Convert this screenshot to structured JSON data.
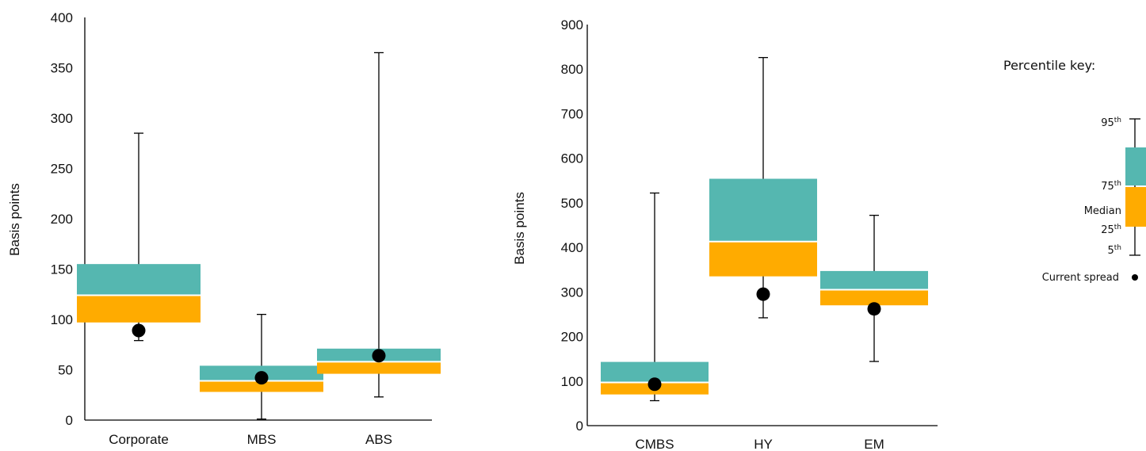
{
  "colors": {
    "upper_box": "#55b7b0",
    "lower_box": "#ffab00",
    "marker": "#000000",
    "axis": "#000000"
  },
  "chart_data": [
    {
      "type": "box",
      "ylabel": "Basis points",
      "ylim": [
        0,
        400
      ],
      "yticks": [
        "0",
        "50",
        "100",
        "150",
        "200",
        "250",
        "300",
        "350",
        "400"
      ],
      "categories": [
        "Corporate",
        "MBS",
        "ABS"
      ],
      "series": [
        {
          "category": "Corporate",
          "p5": 79,
          "p25": 97,
          "median": 124,
          "p75": 155,
          "p95": 285,
          "current": 89
        },
        {
          "category": "MBS",
          "p5": 1,
          "p25": 28,
          "median": 39,
          "p75": 54,
          "p95": 105,
          "current": 42
        },
        {
          "category": "ABS",
          "p5": 23,
          "p25": 46,
          "median": 58,
          "p75": 71,
          "p95": 365,
          "current": 64
        }
      ]
    },
    {
      "type": "box",
      "ylabel": "Basis points",
      "ylim": [
        0,
        900
      ],
      "yticks": [
        "0",
        "100",
        "200",
        "300",
        "400",
        "500",
        "600",
        "700",
        "800",
        "900"
      ],
      "categories": [
        "CMBS",
        "HY",
        "EM"
      ],
      "series": [
        {
          "category": "CMBS",
          "p5": 56,
          "p25": 70,
          "median": 97,
          "p75": 143,
          "p95": 522,
          "current": 93
        },
        {
          "category": "HY",
          "p5": 242,
          "p25": 335,
          "median": 413,
          "p75": 554,
          "p95": 826,
          "current": 295
        },
        {
          "category": "EM",
          "p5": 144,
          "p25": 270,
          "median": 305,
          "p75": 347,
          "p95": 472,
          "current": 262
        }
      ]
    }
  ],
  "key": {
    "title": "Percentile key:",
    "p95": "95",
    "p95_sup": "th",
    "p75": "75",
    "p75_sup": "th",
    "median": "Median",
    "p25": "25",
    "p25_sup": "th",
    "p5": "5",
    "p5_sup": "th",
    "current": "Current spread"
  }
}
